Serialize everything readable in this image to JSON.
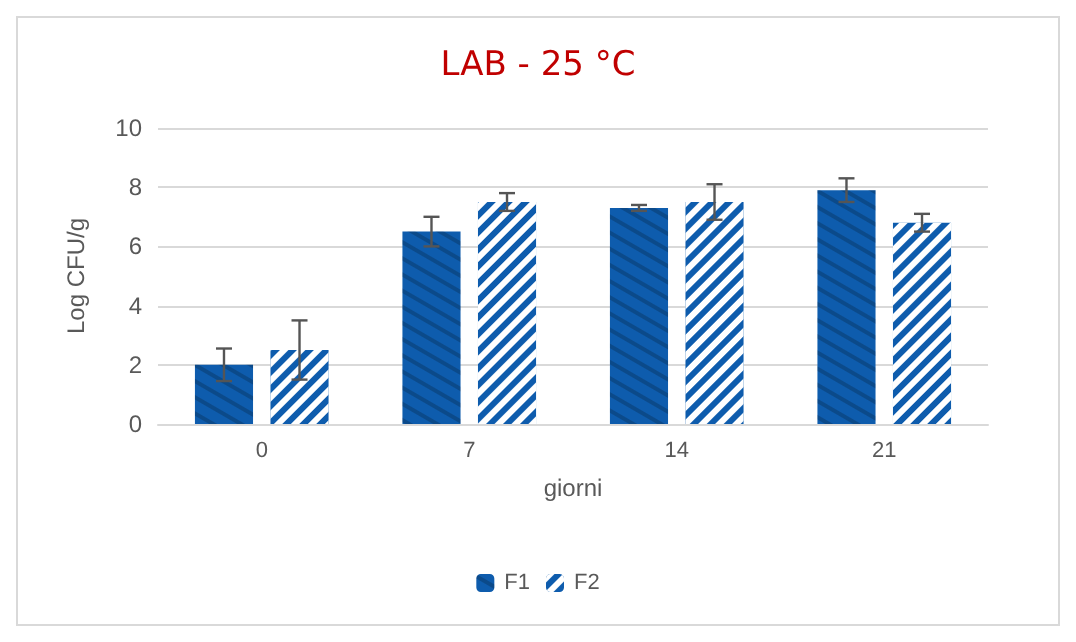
{
  "chart_data": {
    "type": "bar",
    "title": "LAB - 25 °C",
    "xlabel": "giorni",
    "ylabel": "Log CFU/g",
    "categories": [
      "0",
      "7",
      "14",
      "21"
    ],
    "series": [
      {
        "name": "F1",
        "color": "#0e5cad",
        "values": [
          2.0,
          6.5,
          7.3,
          7.9
        ],
        "errors": [
          0.55,
          0.5,
          0.1,
          0.4
        ]
      },
      {
        "name": "F2",
        "color": "#0e5cad",
        "values": [
          2.5,
          7.5,
          7.5,
          6.8
        ],
        "errors": [
          1.0,
          0.3,
          0.6,
          0.3
        ]
      }
    ],
    "ylim": [
      0,
      10
    ],
    "yticks": [
      0,
      2,
      4,
      6,
      8,
      10
    ],
    "grid": "y",
    "legend": "bottom"
  }
}
